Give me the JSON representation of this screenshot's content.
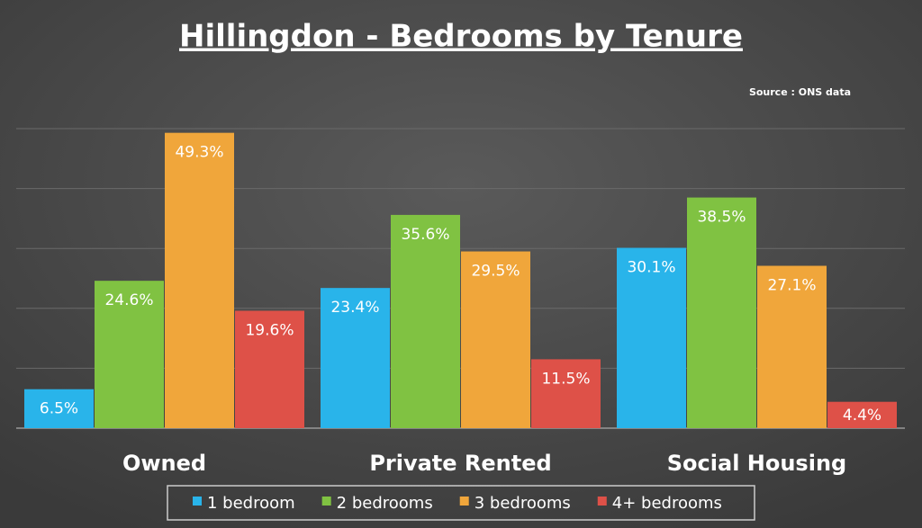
{
  "chart_data": {
    "type": "bar",
    "title": "Hillingdon - Bedrooms by Tenure",
    "source": "Source : ONS data",
    "categories": [
      "Owned",
      "Private Rented",
      "Social Housing"
    ],
    "series": [
      {
        "name": "1 bedroom",
        "color": "#29b4ea",
        "values": [
          6.5,
          23.4,
          30.1
        ],
        "value_labels": [
          "6.5%",
          "23.4%",
          "30.1%"
        ]
      },
      {
        "name": "2 bedrooms",
        "color": "#80c242",
        "values": [
          24.6,
          35.6,
          38.5
        ],
        "value_labels": [
          "24.6%",
          "35.6%",
          "38.5%"
        ]
      },
      {
        "name": "3 bedrooms",
        "color": "#f0a63b",
        "values": [
          49.3,
          29.5,
          27.1
        ],
        "value_labels": [
          "49.3%",
          "29.5%",
          "27.1%"
        ]
      },
      {
        "name": "4+ bedrooms",
        "color": "#de5148",
        "values": [
          19.6,
          11.5,
          4.4
        ],
        "value_labels": [
          "19.6%",
          "11.5%",
          "4.4%"
        ]
      }
    ],
    "ylim": [
      0,
      50
    ],
    "yticks": [
      0,
      10,
      20,
      30,
      40,
      50
    ],
    "grid": true,
    "legend": "bottom"
  }
}
